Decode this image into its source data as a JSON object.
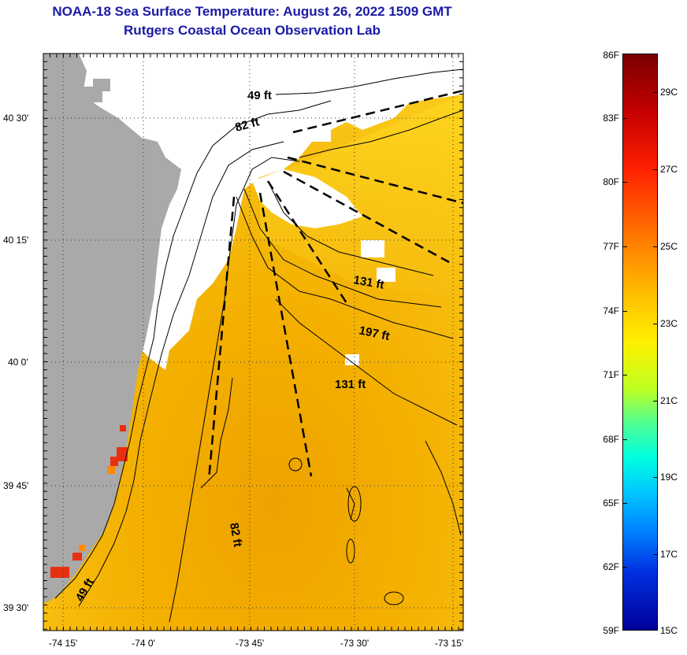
{
  "title": {
    "line1": "NOAA-18 Sea Surface Temperature:  August 26, 2022 1509 GMT",
    "line2": "Rutgers Coastal Ocean Observation Lab"
  },
  "axes": {
    "lat_labels": [
      "40 30'",
      "40 15'",
      "40 0'",
      "39 45'",
      "39 30'"
    ],
    "lon_labels": [
      "-74 15'",
      "-74 0'",
      "-73 45'",
      "-73 30'",
      "-73 15'"
    ]
  },
  "depth_labels": [
    "49 ft",
    "82 ft",
    "131 ft",
    "197 ft",
    "131 ft",
    "82 ft",
    "49 ft"
  ],
  "colorbar": {
    "fahrenheit_labels": [
      "86F",
      "83F",
      "80F",
      "77F",
      "74F",
      "71F",
      "68F",
      "65F",
      "62F",
      "59F"
    ],
    "celsius_labels": [
      "29C",
      "27C",
      "25C",
      "23C",
      "21C",
      "19C",
      "17C",
      "15C"
    ]
  },
  "colors": {
    "land": "#a9a9a9",
    "cloud": "#ffffff",
    "sst_warm": "#f0a800",
    "sst_yellow": "#ffd21a",
    "sst_hot": "#e83010",
    "title": "#1a1aa6"
  }
}
